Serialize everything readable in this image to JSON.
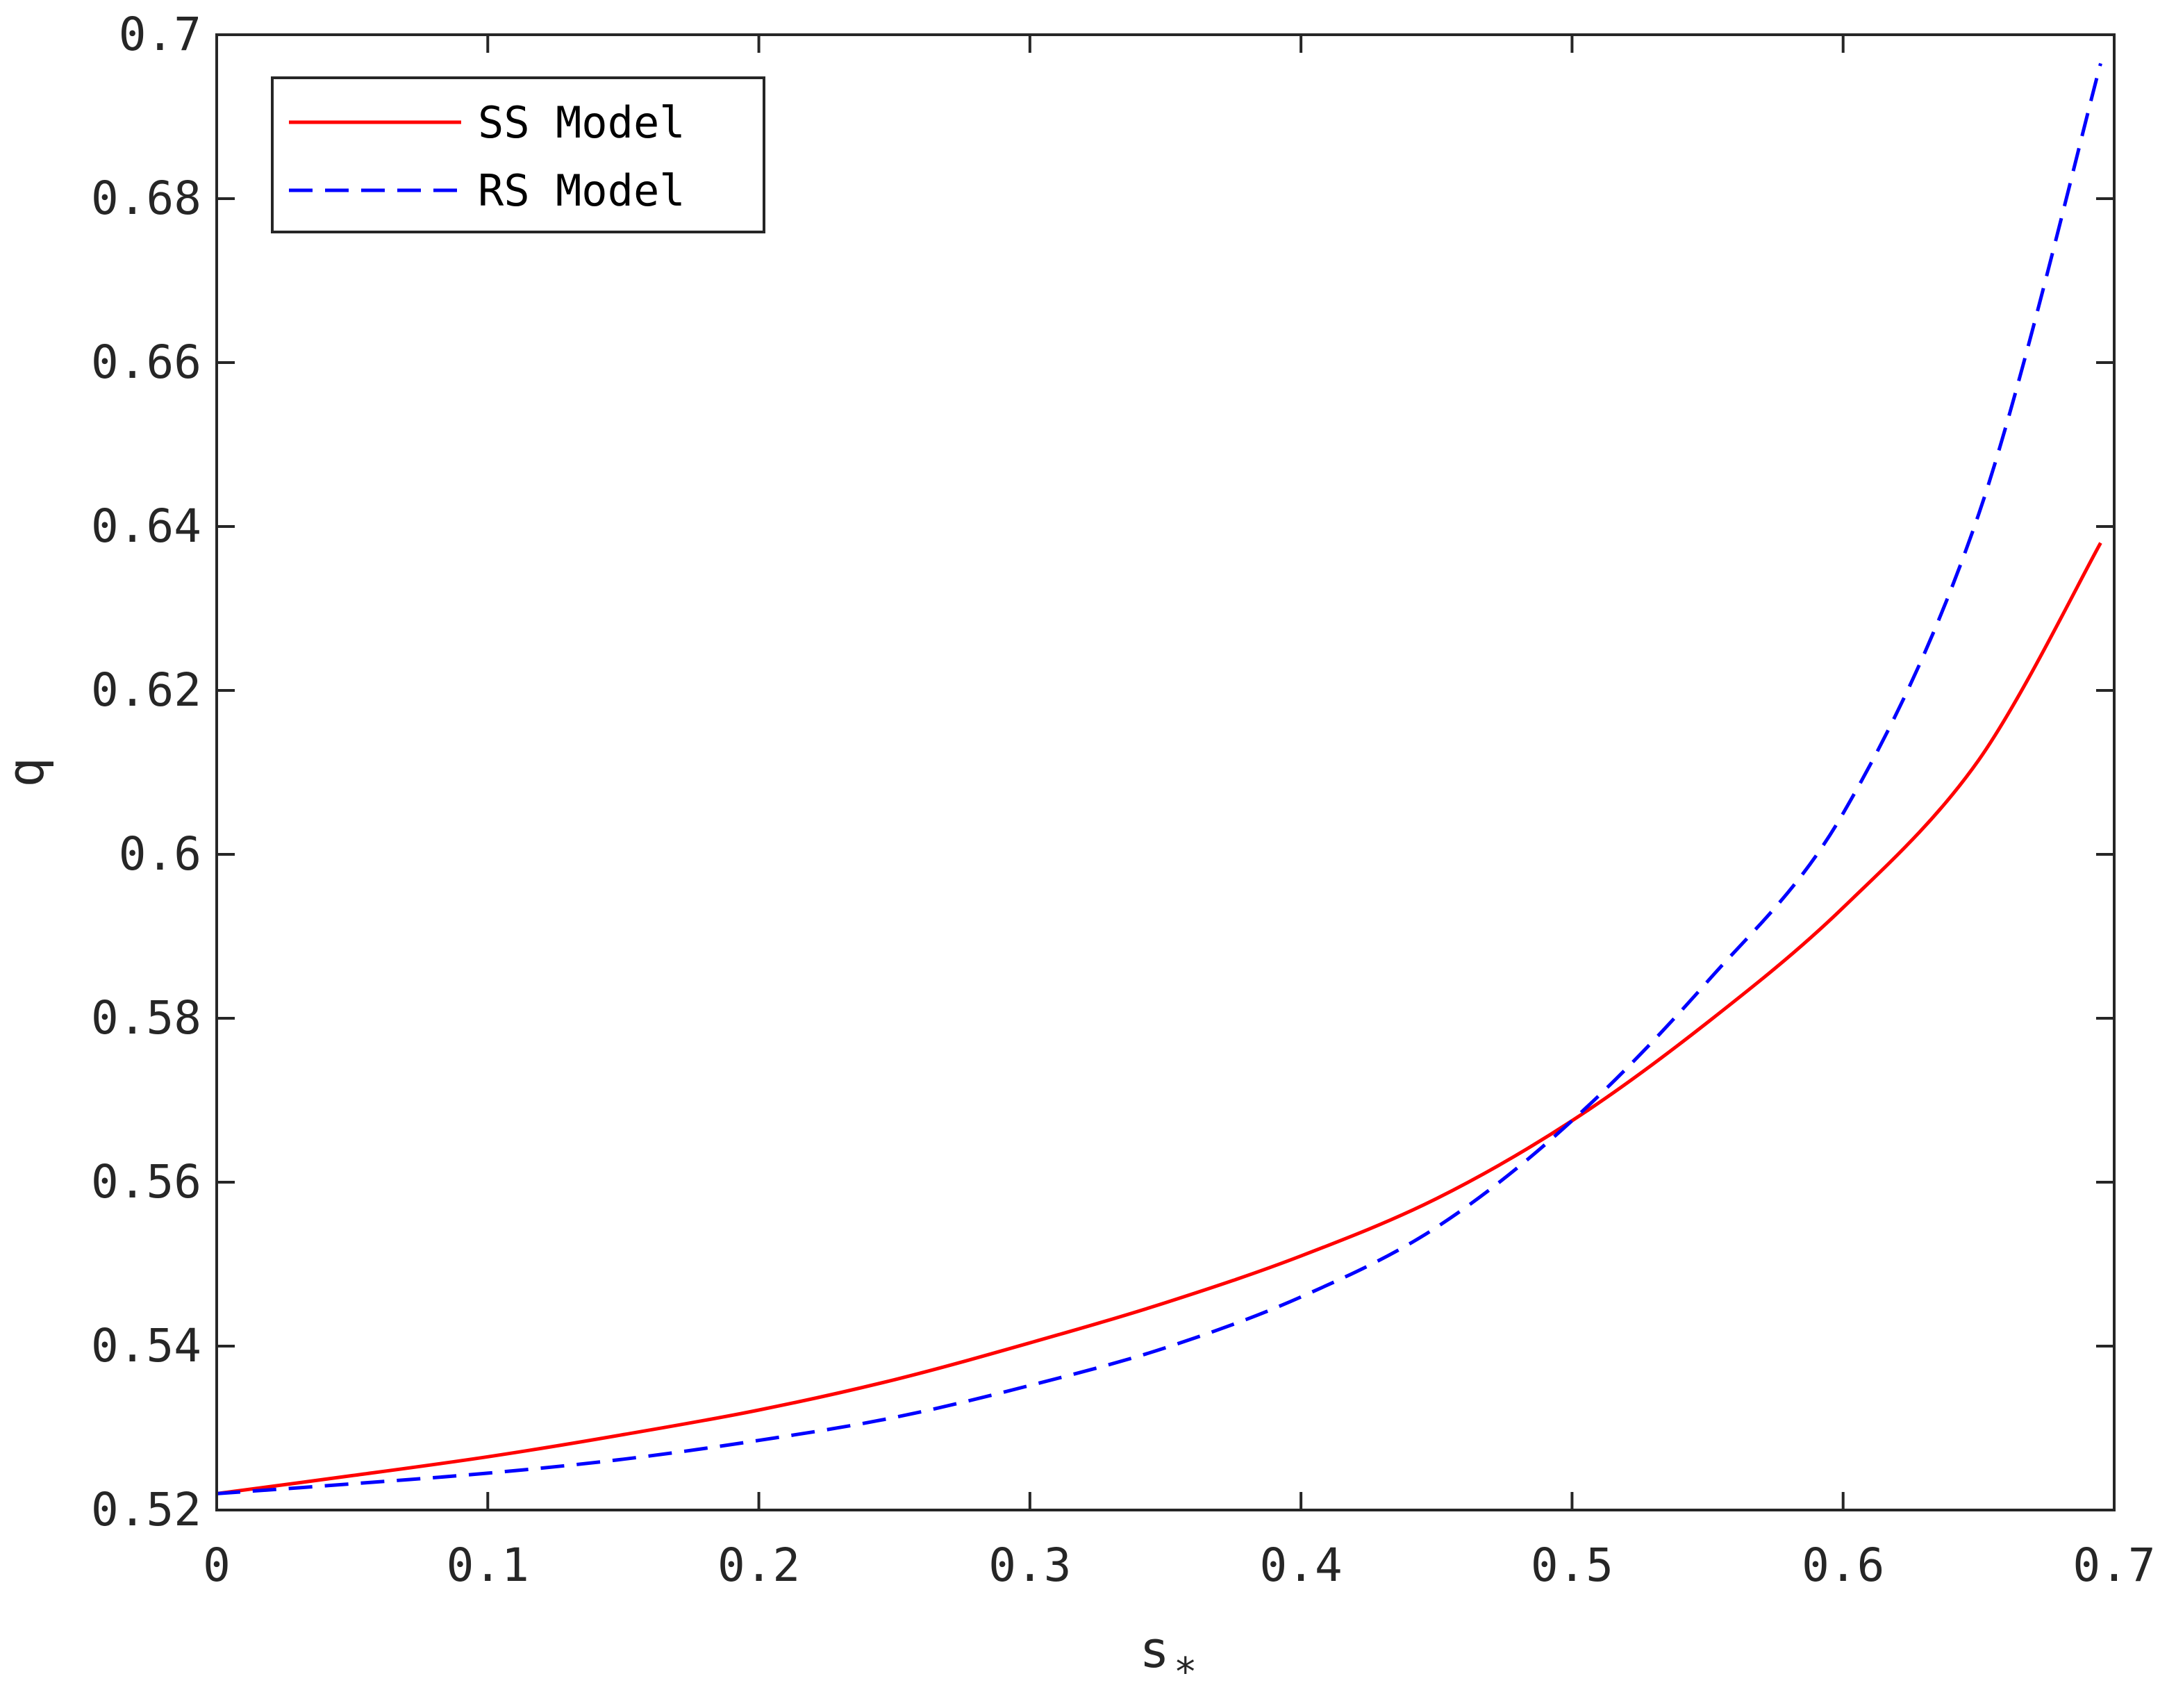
{
  "chart_data": {
    "type": "line",
    "xlabel": "s",
    "xlabel_subscript": "*",
    "ylabel": "q",
    "xlim": [
      0,
      0.7
    ],
    "ylim": [
      0.52,
      0.7
    ],
    "xticks": [
      "0",
      "0.1",
      "0.2",
      "0.3",
      "0.4",
      "0.5",
      "0.6",
      "0.7"
    ],
    "yticks": [
      "0.52",
      "0.54",
      "0.56",
      "0.58",
      "0.6",
      "0.62",
      "0.64",
      "0.66",
      "0.68",
      "0.7"
    ],
    "xtick_values": [
      0,
      0.1,
      0.2,
      0.3,
      0.4,
      0.5,
      0.6,
      0.7
    ],
    "ytick_values": [
      0.52,
      0.54,
      0.56,
      0.58,
      0.6,
      0.62,
      0.64,
      0.66,
      0.68,
      0.7
    ],
    "grid": false,
    "legend_position": "top-left",
    "series": [
      {
        "name": "SS Model",
        "color": "#ff0000",
        "style": "solid",
        "x": [
          0,
          0.05,
          0.1,
          0.15,
          0.2,
          0.25,
          0.3,
          0.35,
          0.4,
          0.45,
          0.5,
          0.55,
          0.6,
          0.65,
          0.695
        ],
        "y": [
          0.522,
          0.5242,
          0.5265,
          0.5292,
          0.5322,
          0.5359,
          0.5404,
          0.5453,
          0.551,
          0.558,
          0.5675,
          0.5795,
          0.5935,
          0.6115,
          0.638
        ]
      },
      {
        "name": "RS Model",
        "color": "#0000ff",
        "style": "dashed",
        "x": [
          0,
          0.05,
          0.1,
          0.15,
          0.2,
          0.25,
          0.3,
          0.35,
          0.4,
          0.45,
          0.5,
          0.55,
          0.6,
          0.65,
          0.695
        ],
        "y": [
          0.522,
          0.5232,
          0.5245,
          0.5262,
          0.5285,
          0.5313,
          0.5352,
          0.5398,
          0.546,
          0.5545,
          0.5675,
          0.5845,
          0.605,
          0.6415,
          0.6965
        ]
      }
    ]
  }
}
